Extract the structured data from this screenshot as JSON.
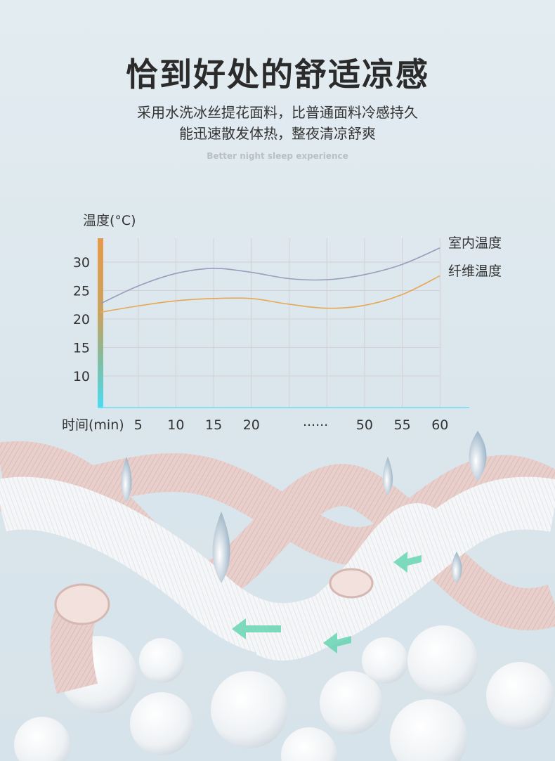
{
  "header": {
    "title": "恰到好处的舒适凉感",
    "subtitle_line1": "采用水洗冰丝提花面料，比普通面料冷感持久",
    "subtitle_line2": "能迅速散发体热，整夜清凉舒爽",
    "tagline": "Better night sleep experience"
  },
  "chart_data": {
    "type": "line",
    "ylabel": "温度(°C)",
    "xlabel": "时间(min)",
    "x_tick_labels": [
      "5",
      "10",
      "15",
      "20",
      "......",
      "50",
      "55",
      "60"
    ],
    "y_ticks": [
      30,
      25,
      20,
      15,
      10
    ],
    "ylim": [
      5,
      34
    ],
    "grid": true,
    "legend_placement": "right",
    "x": [
      "0",
      "5",
      "10",
      "15",
      "20",
      "25",
      "……",
      "50",
      "55",
      "60"
    ],
    "series": [
      {
        "name": "室内温度",
        "color": "#9a9cbb",
        "values": [
          22.7,
          25.8,
          28.0,
          28.9,
          28.2,
          27.1,
          26.9,
          27.8,
          29.6,
          32.5
        ]
      },
      {
        "name": "纤维温度",
        "color": "#e6a756",
        "values": [
          21.2,
          22.3,
          23.2,
          23.6,
          23.6,
          22.6,
          21.9,
          22.4,
          24.3,
          27.6
        ]
      }
    ]
  },
  "colors": {
    "axis_bar_top": "#e79a4a",
    "axis_bar_bottom": "#49dcf2",
    "x_axis": "#6fdcf0",
    "fiber_pink": "#e9d0cc",
    "fiber_white": "#f4f5f7"
  }
}
